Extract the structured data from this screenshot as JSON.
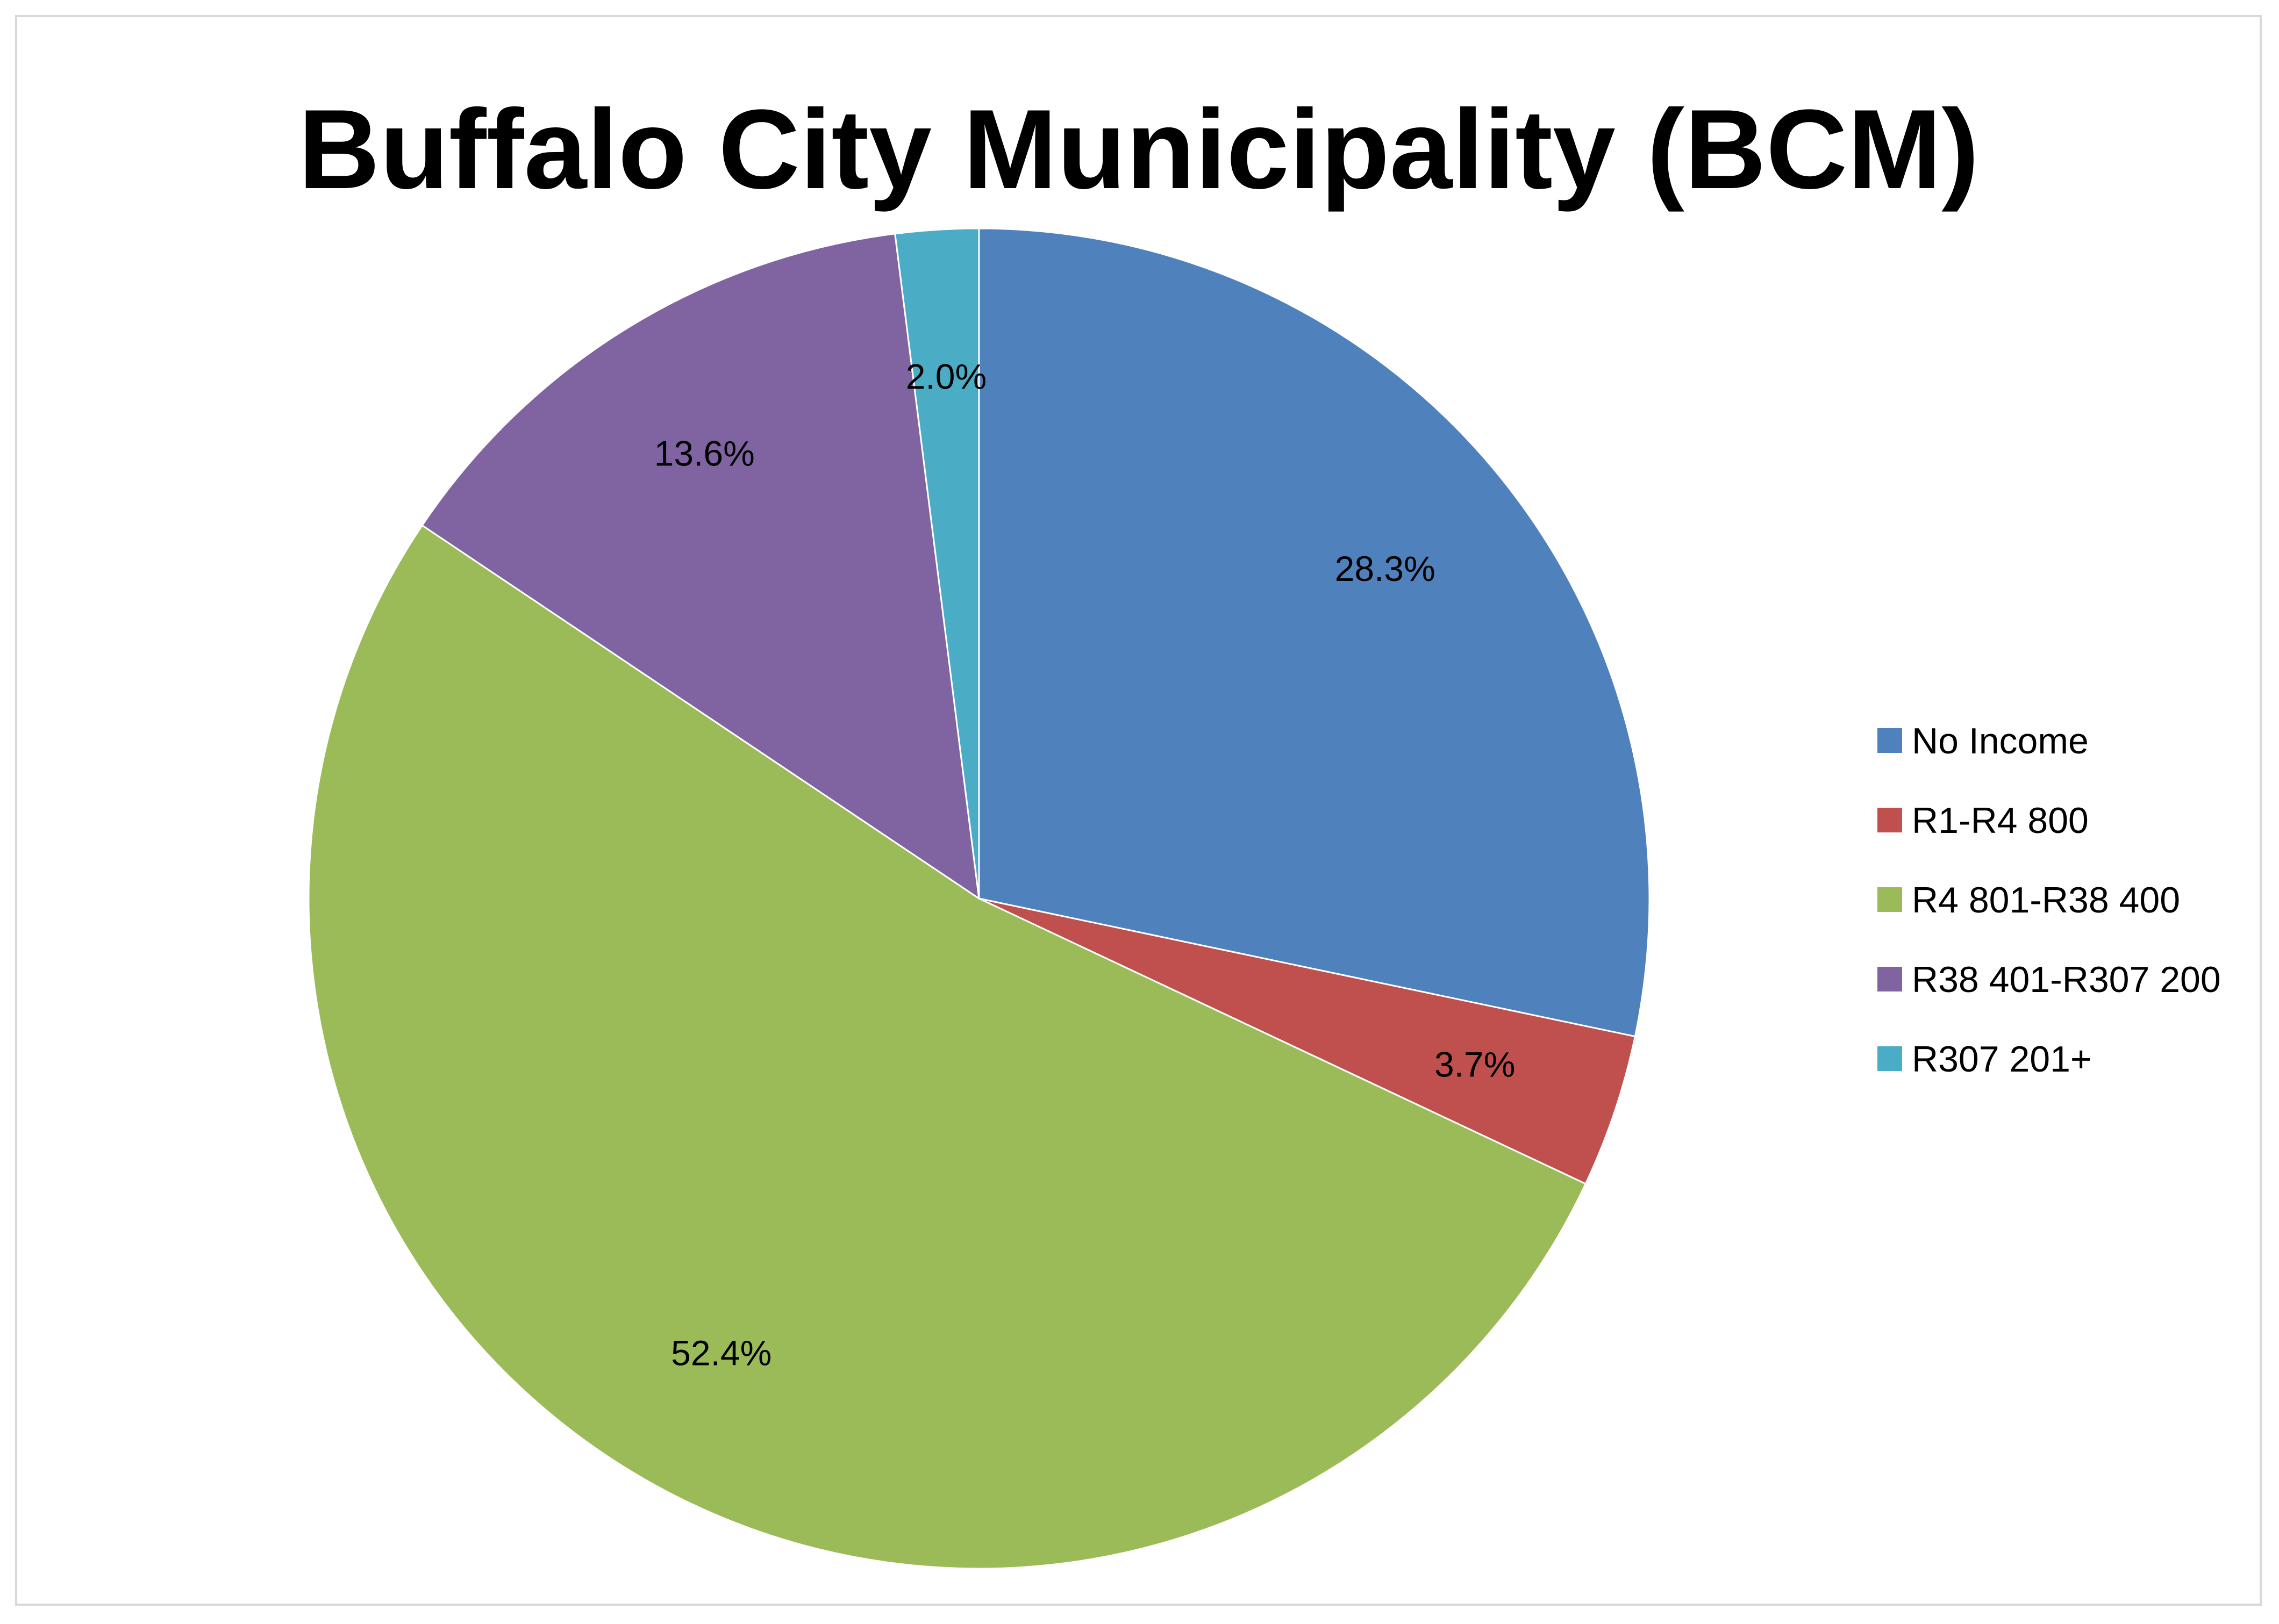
{
  "chart_data": {
    "type": "pie",
    "title": "Buffalo City Municipality (BCM)",
    "start_angle_deg": 0,
    "direction": "clockwise",
    "slices": [
      {
        "name": "No Income",
        "value": 28.3,
        "label": "28.3%",
        "color": "#4F81BD"
      },
      {
        "name": "R1-R4 800",
        "value": 3.7,
        "label": "3.7%",
        "color": "#C0504D"
      },
      {
        "name": "R4 801-R38 400",
        "value": 52.4,
        "label": "52.4%",
        "color": "#9BBB59"
      },
      {
        "name": "R38 401-R307 200",
        "value": 13.6,
        "label": "13.6%",
        "color": "#8064A2"
      },
      {
        "name": "R307 201+",
        "value": 2.0,
        "label": "2.0%",
        "color": "#4BACC6"
      }
    ],
    "legend": {
      "position": "right"
    }
  }
}
